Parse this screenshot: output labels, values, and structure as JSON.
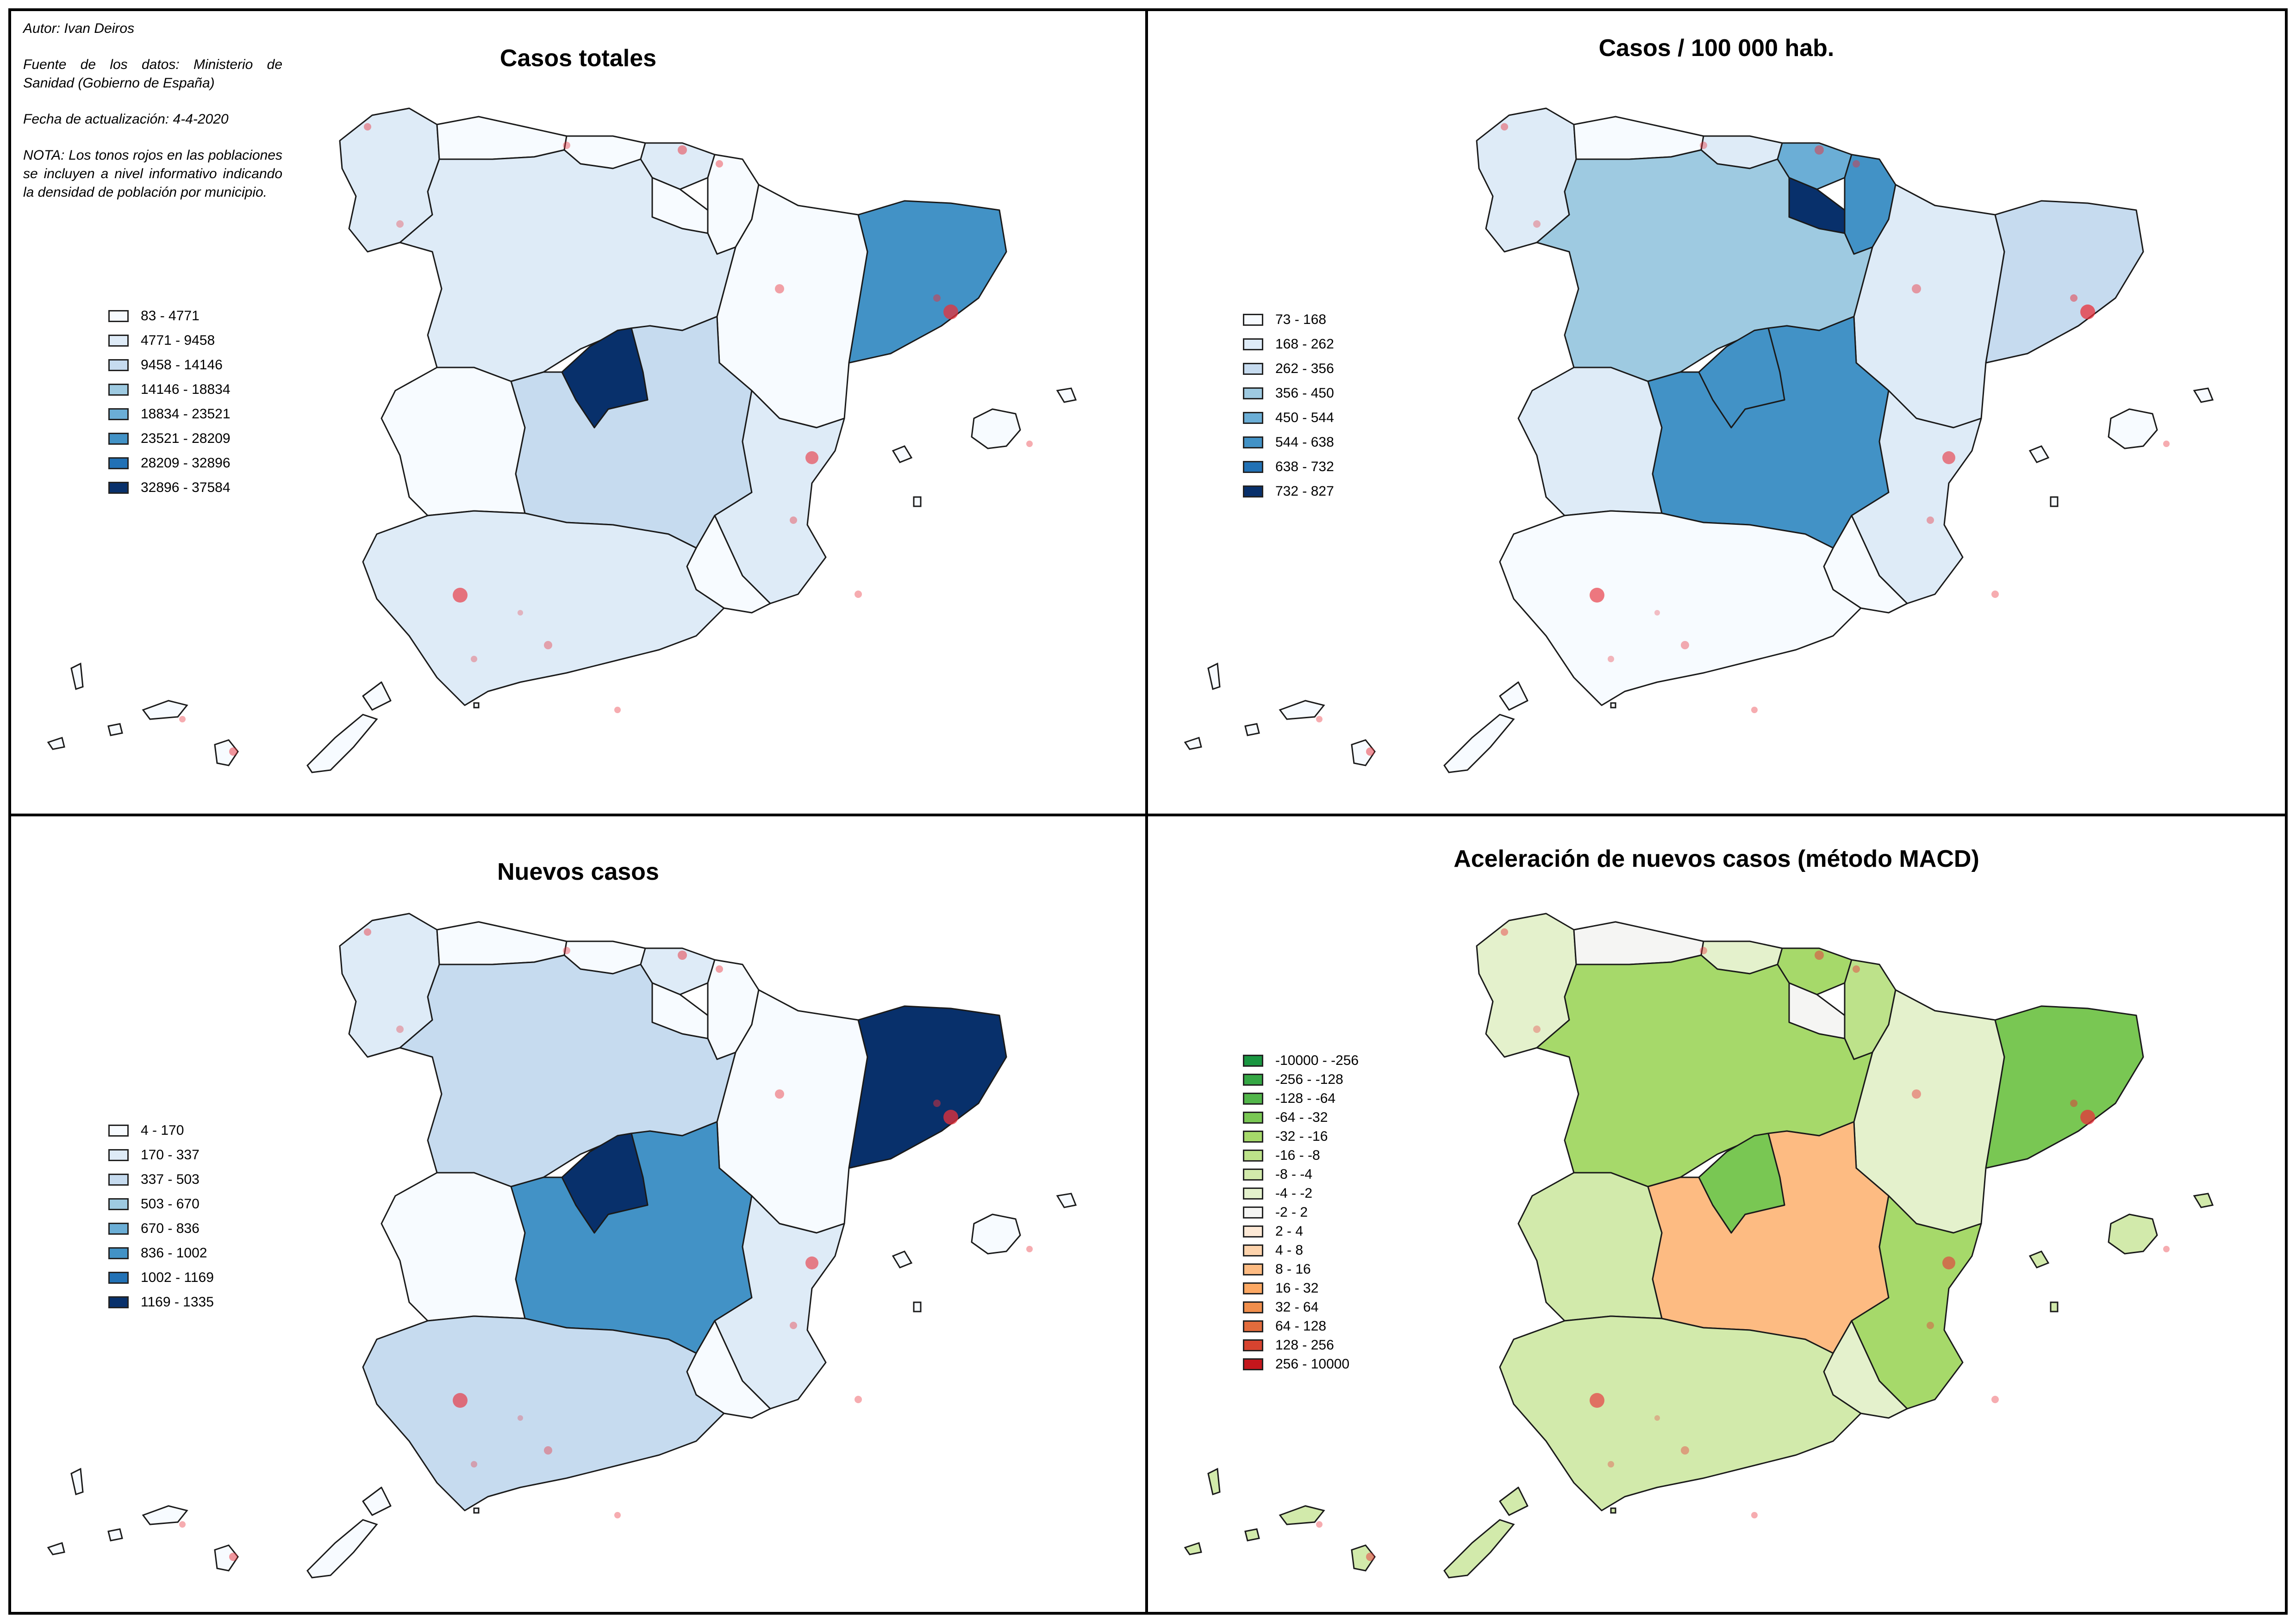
{
  "notes": {
    "author": "Autor: Ivan Deiros",
    "source": "Fuente de los datos: Ministerio de Sanidad (Gobierno de España)",
    "updated": "Fecha de actualización: 4-4-2020",
    "note": "NOTA: Los tonos rojos en las poblaciones se incluyen a nivel informativo indicando la densidad de población por municipio."
  },
  "panels": [
    {
      "title": "Casos totales",
      "legend": [
        {
          "label": "83 - 4771",
          "color": "#f7fbff"
        },
        {
          "label": "4771 - 9458",
          "color": "#deebf7"
        },
        {
          "label": "9458 - 14146",
          "color": "#c6dbef"
        },
        {
          "label": "14146 - 18834",
          "color": "#9ecae1"
        },
        {
          "label": "18834 - 23521",
          "color": "#6baed6"
        },
        {
          "label": "23521 - 28209",
          "color": "#4292c6"
        },
        {
          "label": "28209 - 32896",
          "color": "#2171b5"
        },
        {
          "label": "32896 - 37584",
          "color": "#08306b"
        }
      ],
      "regions": {
        "galicia": "#deebf7",
        "asturias": "#f7fbff",
        "cantabria": "#f7fbff",
        "pais-vasco": "#deebf7",
        "navarra": "#f7fbff",
        "la-rioja": "#f7fbff",
        "aragon": "#f7fbff",
        "cataluna": "#4292c6",
        "castilla-y-leon": "#deebf7",
        "madrid": "#08306b",
        "castilla-la-mancha": "#c6dbef",
        "extremadura": "#f7fbff",
        "valencia": "#deebf7",
        "murcia": "#f7fbff",
        "andalucia": "#deebf7",
        "baleares": "#f7fbff",
        "canarias": "#f7fbff"
      }
    },
    {
      "title": "Casos / 100 000 hab.",
      "legend": [
        {
          "label": "73 - 168",
          "color": "#f7fbff"
        },
        {
          "label": "168 - 262",
          "color": "#deebf7"
        },
        {
          "label": "262 - 356",
          "color": "#c6dbef"
        },
        {
          "label": "356 - 450",
          "color": "#9ecae1"
        },
        {
          "label": "450 - 544",
          "color": "#6baed6"
        },
        {
          "label": "544 - 638",
          "color": "#4292c6"
        },
        {
          "label": "638 - 732",
          "color": "#2171b5"
        },
        {
          "label": "732 - 827",
          "color": "#08306b"
        }
      ],
      "regions": {
        "galicia": "#deebf7",
        "asturias": "#f7fbff",
        "cantabria": "#deebf7",
        "pais-vasco": "#6baed6",
        "navarra": "#4292c6",
        "la-rioja": "#08306b",
        "aragon": "#deebf7",
        "cataluna": "#c6dbef",
        "castilla-y-leon": "#9ecae1",
        "madrid": "#4292c6",
        "castilla-la-mancha": "#4292c6",
        "extremadura": "#deebf7",
        "valencia": "#deebf7",
        "murcia": "#f7fbff",
        "andalucia": "#f7fbff",
        "baleares": "#f7fbff",
        "canarias": "#f7fbff"
      }
    },
    {
      "title": "Nuevos casos",
      "legend": [
        {
          "label": "4 - 170",
          "color": "#f7fbff"
        },
        {
          "label": "170 - 337",
          "color": "#deebf7"
        },
        {
          "label": "337 - 503",
          "color": "#c6dbef"
        },
        {
          "label": "503 - 670",
          "color": "#9ecae1"
        },
        {
          "label": "670 - 836",
          "color": "#6baed6"
        },
        {
          "label": "836 - 1002",
          "color": "#4292c6"
        },
        {
          "label": "1002 - 1169",
          "color": "#2171b5"
        },
        {
          "label": "1169 - 1335",
          "color": "#08306b"
        }
      ],
      "regions": {
        "galicia": "#deebf7",
        "asturias": "#f7fbff",
        "cantabria": "#f7fbff",
        "pais-vasco": "#deebf7",
        "navarra": "#f7fbff",
        "la-rioja": "#f7fbff",
        "aragon": "#f7fbff",
        "cataluna": "#08306b",
        "castilla-y-leon": "#c6dbef",
        "madrid": "#08306b",
        "castilla-la-mancha": "#4292c6",
        "extremadura": "#f7fbff",
        "valencia": "#deebf7",
        "murcia": "#f7fbff",
        "andalucia": "#c6dbef",
        "baleares": "#f7fbff",
        "canarias": "#f7fbff"
      }
    },
    {
      "title": "Aceleración de nuevos casos (método MACD)",
      "legend": [
        {
          "label": "-10000 - -256",
          "color": "#1a9641"
        },
        {
          "label": "-256 - -128",
          "color": "#35a744"
        },
        {
          "label": "-128 - -64",
          "color": "#52b64a"
        },
        {
          "label": "-64 - -32",
          "color": "#79c753"
        },
        {
          "label": "-32 - -16",
          "color": "#a6d96a"
        },
        {
          "label": "-16 - -8",
          "color": "#bde28a"
        },
        {
          "label": "-8 - -4",
          "color": "#d2eaab"
        },
        {
          "label": "-4 - -2",
          "color": "#e4f1cc"
        },
        {
          "label": "-2 - 2",
          "color": "#f5f5f3"
        },
        {
          "label": "2 - 4",
          "color": "#fde9d6"
        },
        {
          "label": "4 - 8",
          "color": "#fdd3ac"
        },
        {
          "label": "8 - 16",
          "color": "#fdbb82"
        },
        {
          "label": "16 - 32",
          "color": "#fca863"
        },
        {
          "label": "32 - 64",
          "color": "#f08e4c"
        },
        {
          "label": "64 - 128",
          "color": "#e26b3c"
        },
        {
          "label": "128 - 256",
          "color": "#d7432f"
        },
        {
          "label": "256 - 10000",
          "color": "#c4161c"
        }
      ],
      "regions": {
        "galicia": "#e4f1cc",
        "asturias": "#f5f5f3",
        "cantabria": "#e4f1cc",
        "pais-vasco": "#a6d96a",
        "navarra": "#bde28a",
        "la-rioja": "#f5f5f3",
        "aragon": "#e4f1cc",
        "cataluna": "#79c753",
        "castilla-y-leon": "#a6d96a",
        "madrid": "#79c753",
        "castilla-la-mancha": "#fdbb82",
        "extremadura": "#d2eaab",
        "valencia": "#a6d96a",
        "murcia": "#e4f1cc",
        "andalucia": "#d2eaab",
        "baleares": "#d2eaab",
        "canarias": "#d2eaab"
      }
    }
  ]
}
